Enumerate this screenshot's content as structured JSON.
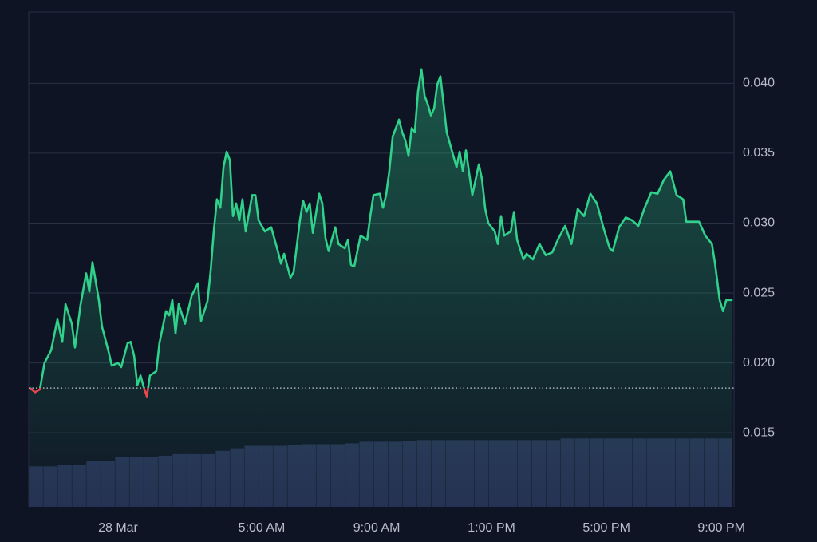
{
  "chart_data": {
    "type": "line",
    "x": [
      -3.06,
      -2.89,
      -2.72,
      -2.56,
      -2.33,
      -2.11,
      -1.94,
      -1.83,
      -1.61,
      -1.5,
      -1.31,
      -1.11,
      -1,
      -0.89,
      -0.67,
      -0.56,
      -0.33,
      -0.22,
      0,
      0.11,
      0.33,
      0.44,
      0.56,
      0.67,
      0.78,
      0.89,
      1,
      1.11,
      1.33,
      1.44,
      1.67,
      1.78,
      1.89,
      2,
      2.11,
      2.33,
      2.56,
      2.78,
      2.89,
      3.11,
      3.22,
      3.33,
      3.44,
      3.56,
      3.67,
      3.78,
      3.89,
      4,
      4.11,
      4.22,
      4.33,
      4.44,
      4.67,
      4.78,
      4.89,
      5.11,
      5.33,
      5.56,
      5.67,
      5.78,
      6,
      6.11,
      6.33,
      6.44,
      6.56,
      6.67,
      6.78,
      7,
      7.11,
      7.22,
      7.33,
      7.56,
      7.67,
      7.89,
      8,
      8.11,
      8.22,
      8.44,
      8.67,
      8.78,
      8.89,
      9.11,
      9.22,
      9.33,
      9.44,
      9.56,
      9.78,
      9.89,
      10,
      10.11,
      10.22,
      10.33,
      10.44,
      10.56,
      10.67,
      10.78,
      10.89,
      11,
      11.11,
      11.22,
      11.33,
      11.44,
      11.67,
      11.78,
      11.89,
      12,
      12.11,
      12.33,
      12.56,
      12.67,
      12.78,
      12.89,
      13.11,
      13.22,
      13.33,
      13.44,
      13.67,
      13.78,
      13.89,
      14.11,
      14.22,
      14.44,
      14.67,
      14.89,
      15.11,
      15.33,
      15.56,
      15.78,
      16,
      16.22,
      16.44,
      16.67,
      16.89,
      17.11,
      17.22,
      17.44,
      17.67,
      17.89,
      18.11,
      18.33,
      18.56,
      18.78,
      19,
      19.22,
      19.44,
      19.67,
      19.78,
      20,
      20.22,
      20.44,
      20.67,
      20.78,
      20.94,
      21.06,
      21.17,
      21.39
    ],
    "values": [
      0.0182,
      0.0179,
      0.0181,
      0.02,
      0.0209,
      0.0231,
      0.0215,
      0.0242,
      0.0228,
      0.0211,
      0.0241,
      0.0264,
      0.0251,
      0.0272,
      0.0245,
      0.0226,
      0.0208,
      0.0198,
      0.02,
      0.0197,
      0.0214,
      0.0215,
      0.0205,
      0.0184,
      0.0191,
      0.0183,
      0.0176,
      0.0191,
      0.0194,
      0.0214,
      0.0237,
      0.0234,
      0.0245,
      0.0221,
      0.0242,
      0.0228,
      0.0248,
      0.0257,
      0.023,
      0.0244,
      0.0265,
      0.0294,
      0.0317,
      0.0311,
      0.034,
      0.0351,
      0.0345,
      0.0305,
      0.0314,
      0.0302,
      0.0317,
      0.0294,
      0.032,
      0.032,
      0.0302,
      0.0294,
      0.0297,
      0.028,
      0.0271,
      0.0278,
      0.0261,
      0.0265,
      0.0302,
      0.0316,
      0.0308,
      0.0314,
      0.0293,
      0.0321,
      0.0314,
      0.0289,
      0.028,
      0.0297,
      0.0285,
      0.0282,
      0.0288,
      0.027,
      0.0269,
      0.0291,
      0.0288,
      0.0305,
      0.032,
      0.0321,
      0.0311,
      0.032,
      0.0337,
      0.0362,
      0.0374,
      0.0365,
      0.0359,
      0.0348,
      0.0368,
      0.0365,
      0.0394,
      0.041,
      0.0391,
      0.0385,
      0.0377,
      0.0382,
      0.0399,
      0.0405,
      0.0385,
      0.0365,
      0.0348,
      0.034,
      0.0351,
      0.0337,
      0.0352,
      0.032,
      0.0342,
      0.0331,
      0.031,
      0.03,
      0.0294,
      0.0285,
      0.0305,
      0.0291,
      0.0294,
      0.0308,
      0.0288,
      0.0274,
      0.0278,
      0.0274,
      0.0285,
      0.0277,
      0.0279,
      0.0289,
      0.0298,
      0.0285,
      0.031,
      0.0305,
      0.0321,
      0.0314,
      0.0297,
      0.0282,
      0.028,
      0.0297,
      0.0304,
      0.0302,
      0.0298,
      0.0311,
      0.0322,
      0.0321,
      0.0331,
      0.0337,
      0.032,
      0.0317,
      0.0301,
      0.0301,
      0.0301,
      0.0291,
      0.0285,
      0.0271,
      0.0245,
      0.0237,
      0.0245,
      0.0245
    ],
    "color": "#2fd18b",
    "down_color": "#e5484d",
    "baseline": 0.0182,
    "xlim": [
      -3.11,
      21.44
    ],
    "xticks": [
      {
        "value": 0,
        "label": "28 Mar"
      },
      {
        "value": 5,
        "label": "5:00 AM"
      },
      {
        "value": 9,
        "label": "9:00 AM"
      },
      {
        "value": 13,
        "label": "1:00 PM"
      },
      {
        "value": 17,
        "label": "5:00 PM"
      },
      {
        "value": 21,
        "label": "9:00 PM"
      }
    ],
    "ylim": [
      0.0097,
      0.0451
    ],
    "yticks": [
      0.015,
      {
        "value": 0.02,
        "label": "0.020"
      },
      0.025,
      {
        "value": 0.03,
        "label": "0.030"
      },
      0.035,
      {
        "value": 0.04,
        "label": "0.040"
      }
    ],
    "grid": true,
    "volume": {
      "color": "#262f52",
      "bins": [
        -3.1,
        -2.6,
        -2.1,
        -1.6,
        -1.1,
        -0.6,
        -0.1,
        0.4,
        0.9,
        1.4,
        1.9,
        2.4,
        2.9,
        3.4,
        3.9,
        4.4,
        4.9,
        5.4,
        5.9,
        6.4,
        6.9,
        7.4,
        7.9,
        8.4,
        8.9,
        9.4,
        9.9,
        10.4,
        10.9,
        11.4,
        11.9,
        12.4,
        12.9,
        13.4,
        13.9,
        14.4,
        14.9,
        15.4,
        15.9,
        16.4,
        16.9,
        17.4,
        17.9,
        18.4,
        18.9,
        19.4,
        19.9,
        20.4,
        20.9,
        21.4
      ],
      "values": [
        4.9,
        4.9,
        5.1,
        5.1,
        5.6,
        5.6,
        6.0,
        6.0,
        6.0,
        6.2,
        6.4,
        6.4,
        6.4,
        6.8,
        7.1,
        7.4,
        7.4,
        7.4,
        7.5,
        7.6,
        7.6,
        7.6,
        7.7,
        7.9,
        7.9,
        7.9,
        8.0,
        8.1,
        8.1,
        8.1,
        8.1,
        8.1,
        8.1,
        8.1,
        8.1,
        8.1,
        8.1,
        8.3,
        8.3,
        8.3,
        8.3,
        8.3,
        8.3,
        8.3,
        8.3,
        8.3,
        8.3,
        8.3,
        8.3
      ],
      "y2lim": [
        0,
        60
      ]
    }
  }
}
